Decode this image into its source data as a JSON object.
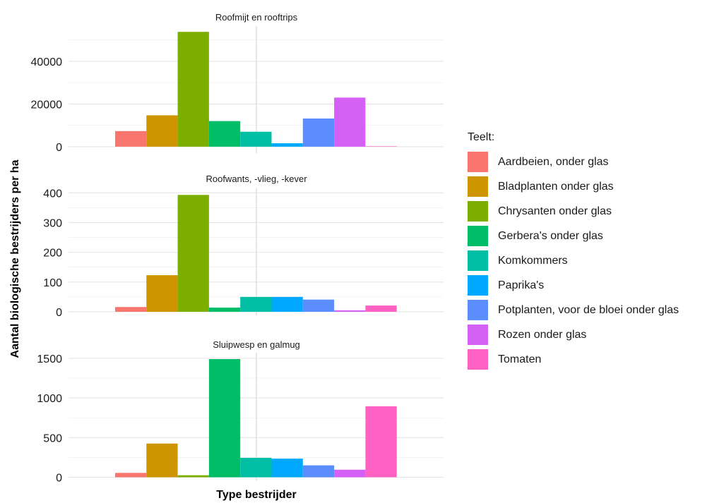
{
  "chart_data": {
    "type": "bar",
    "xlabel": "Type bestrijder",
    "ylabel": "Aantal biologische bestrijders per ha",
    "legend": {
      "title": "Teelt:",
      "placement": "right",
      "items": [
        {
          "name": "Aardbeien, onder glas",
          "color": "#F8766D"
        },
        {
          "name": "Bladplanten onder glas",
          "color": "#CD9600"
        },
        {
          "name": "Chrysanten onder glas",
          "color": "#7CAE00"
        },
        {
          "name": "Gerbera's onder glas",
          "color": "#00BE67"
        },
        {
          "name": "Komkommers",
          "color": "#00BFA5"
        },
        {
          "name": "Paprika's",
          "color": "#00A9FF"
        },
        {
          "name": "Potplanten, voor de bloei onder glas",
          "color": "#5C8DFF"
        },
        {
          "name": "Rozen onder glas",
          "color": "#D560F6"
        },
        {
          "name": "Tomaten",
          "color": "#FF61C3"
        }
      ]
    },
    "grid": true,
    "panels": [
      {
        "title": "Roofmijt en rooftrips",
        "ylim": [
          -3000,
          56500
        ],
        "ticks": [
          0,
          20000,
          40000
        ],
        "tick_labels": [
          "0",
          "20000",
          "40000"
        ],
        "values": [
          7300,
          14700,
          53800,
          12000,
          7000,
          1600,
          13200,
          23000,
          200
        ]
      },
      {
        "title": "Roofwants, -vlieg, -kever",
        "ylim": [
          -12,
          415
        ],
        "ticks": [
          0,
          100,
          200,
          300,
          400
        ],
        "tick_labels": [
          "0",
          "100",
          "200",
          "300",
          "400"
        ],
        "values": [
          16,
          123,
          393,
          14,
          50,
          50,
          41,
          5,
          21
        ]
      },
      {
        "title": "Sluipwesp en galmug",
        "ylim": [
          -40,
          1570
        ],
        "ticks": [
          0,
          500,
          1000,
          1500
        ],
        "tick_labels": [
          "0",
          "500",
          "1000",
          "1500"
        ],
        "values": [
          55,
          425,
          25,
          1490,
          245,
          235,
          150,
          95,
          895
        ]
      }
    ]
  }
}
